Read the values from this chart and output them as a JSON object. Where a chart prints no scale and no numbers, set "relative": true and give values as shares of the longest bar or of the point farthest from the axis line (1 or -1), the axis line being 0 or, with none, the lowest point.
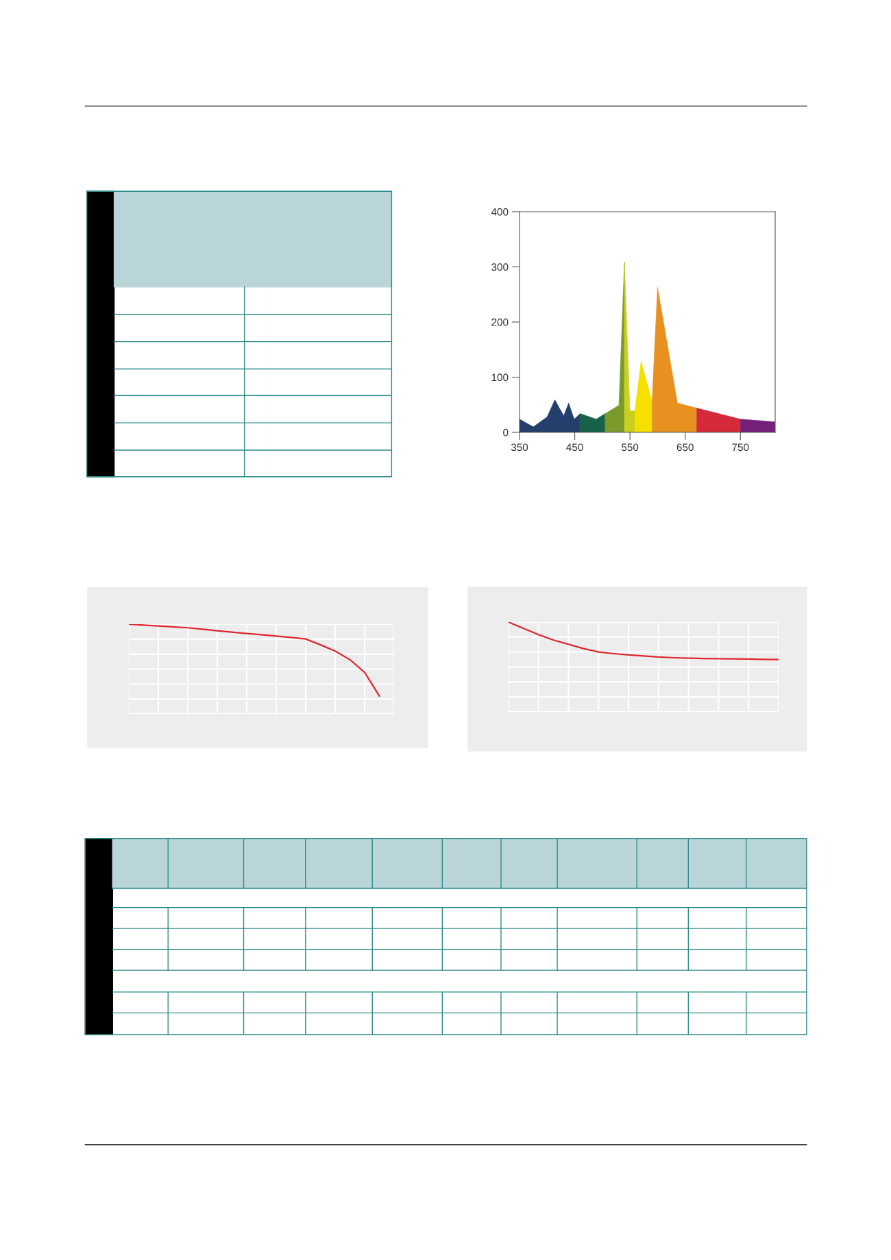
{
  "chart_data": [
    {
      "type": "area",
      "xlim": [
        350,
        813
      ],
      "xticks": [
        350,
        450,
        550,
        650,
        750
      ],
      "ylim": [
        0,
        400
      ],
      "yticks": [
        0,
        100,
        200,
        300,
        400
      ],
      "grid": false,
      "series": [
        {
          "color": "#243f6c",
          "x": [
            350,
            375,
            400,
            414,
            430,
            439,
            449,
            460
          ],
          "values": [
            24,
            10,
            28,
            59,
            30,
            53,
            24,
            34
          ]
        },
        {
          "color": "#17604a",
          "x": [
            460,
            489,
            505
          ],
          "values": [
            34,
            24,
            34
          ]
        },
        {
          "color": "#7a9a2a",
          "x": [
            505,
            530,
            540
          ],
          "values": [
            34,
            49,
            309
          ]
        },
        {
          "color": "#c8d020",
          "x": [
            540,
            550,
            559
          ],
          "values": [
            309,
            39,
            39
          ]
        },
        {
          "color": "#f5e000",
          "x": [
            559,
            570,
            590
          ],
          "values": [
            39,
            129,
            57
          ]
        },
        {
          "color": "#e89020",
          "x": [
            590,
            600,
            636,
            671
          ],
          "values": [
            57,
            263,
            53,
            44
          ]
        },
        {
          "color": "#d42a3a",
          "x": [
            671,
            750
          ],
          "values": [
            44,
            24
          ]
        },
        {
          "color": "#74207a",
          "x": [
            750,
            813
          ],
          "values": [
            24,
            19
          ]
        }
      ]
    },
    {
      "type": "line",
      "relative": true,
      "grid": true,
      "categories": [
        null,
        null,
        null,
        null,
        null,
        null,
        null,
        null,
        null,
        null,
        null,
        null,
        null,
        null,
        null,
        null,
        null,
        null,
        null
      ],
      "series": [
        {
          "color": "#e0262e",
          "values": [
            1.0,
            0.99,
            0.98,
            0.97,
            0.96,
            0.943,
            0.926,
            0.911,
            0.896,
            0.882,
            0.868,
            0.852,
            0.835,
            0.77,
            0.7,
            0.605,
            0.463,
            0.2,
            null
          ]
        }
      ]
    },
    {
      "type": "line",
      "relative": true,
      "grid": true,
      "categories": [
        null,
        null,
        null,
        null,
        null,
        null,
        null,
        null,
        null,
        null,
        null,
        null,
        null,
        null,
        null,
        null,
        null,
        null,
        null
      ],
      "series": [
        {
          "color": "#e0262e",
          "values": [
            1.0,
            0.93,
            0.86,
            0.8,
            0.753,
            0.705,
            0.667,
            0.649,
            0.634,
            0.623,
            0.611,
            0.603,
            0.598,
            0.595,
            0.593,
            0.59,
            0.588,
            0.585,
            0.583
          ]
        }
      ]
    }
  ]
}
